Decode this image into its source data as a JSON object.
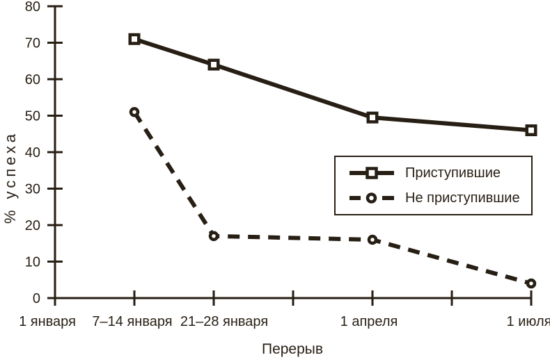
{
  "chart_data": {
    "type": "line",
    "ylabel": "% успеха",
    "xlabel": "Перерыв",
    "ylim": [
      0,
      80
    ],
    "y_ticks": [
      "0",
      "10",
      "20",
      "30",
      "40",
      "50",
      "60",
      "70",
      "80"
    ],
    "x_ticks": [
      "1 января",
      "7–14 января",
      "21–28 января",
      "",
      "1 апреля",
      "",
      "1 июля"
    ],
    "grid": false,
    "legend_position": "center-right",
    "ink_color": "#271e14",
    "background_color": "#ffffff",
    "series": [
      {
        "name": "Приступившие",
        "line_style": "solid",
        "marker": "open-square",
        "points": [
          {
            "x": "7–14 января",
            "tick_index": 1,
            "y": 71
          },
          {
            "x": "21–28 января",
            "tick_index": 2,
            "y": 64
          },
          {
            "x": "1 апреля",
            "tick_index": 4,
            "y": 49.5
          },
          {
            "x": "1 июля",
            "tick_index": 6,
            "y": 46
          }
        ]
      },
      {
        "name": "Не приступившие",
        "line_style": "dashed",
        "marker": "open-circle",
        "points": [
          {
            "x": "7–14 января",
            "tick_index": 1,
            "y": 51
          },
          {
            "x": "21–28 января",
            "tick_index": 2,
            "y": 17
          },
          {
            "x": "1 апреля",
            "tick_index": 4,
            "y": 16
          },
          {
            "x": "1 июля",
            "tick_index": 6,
            "y": 4
          }
        ]
      }
    ]
  }
}
